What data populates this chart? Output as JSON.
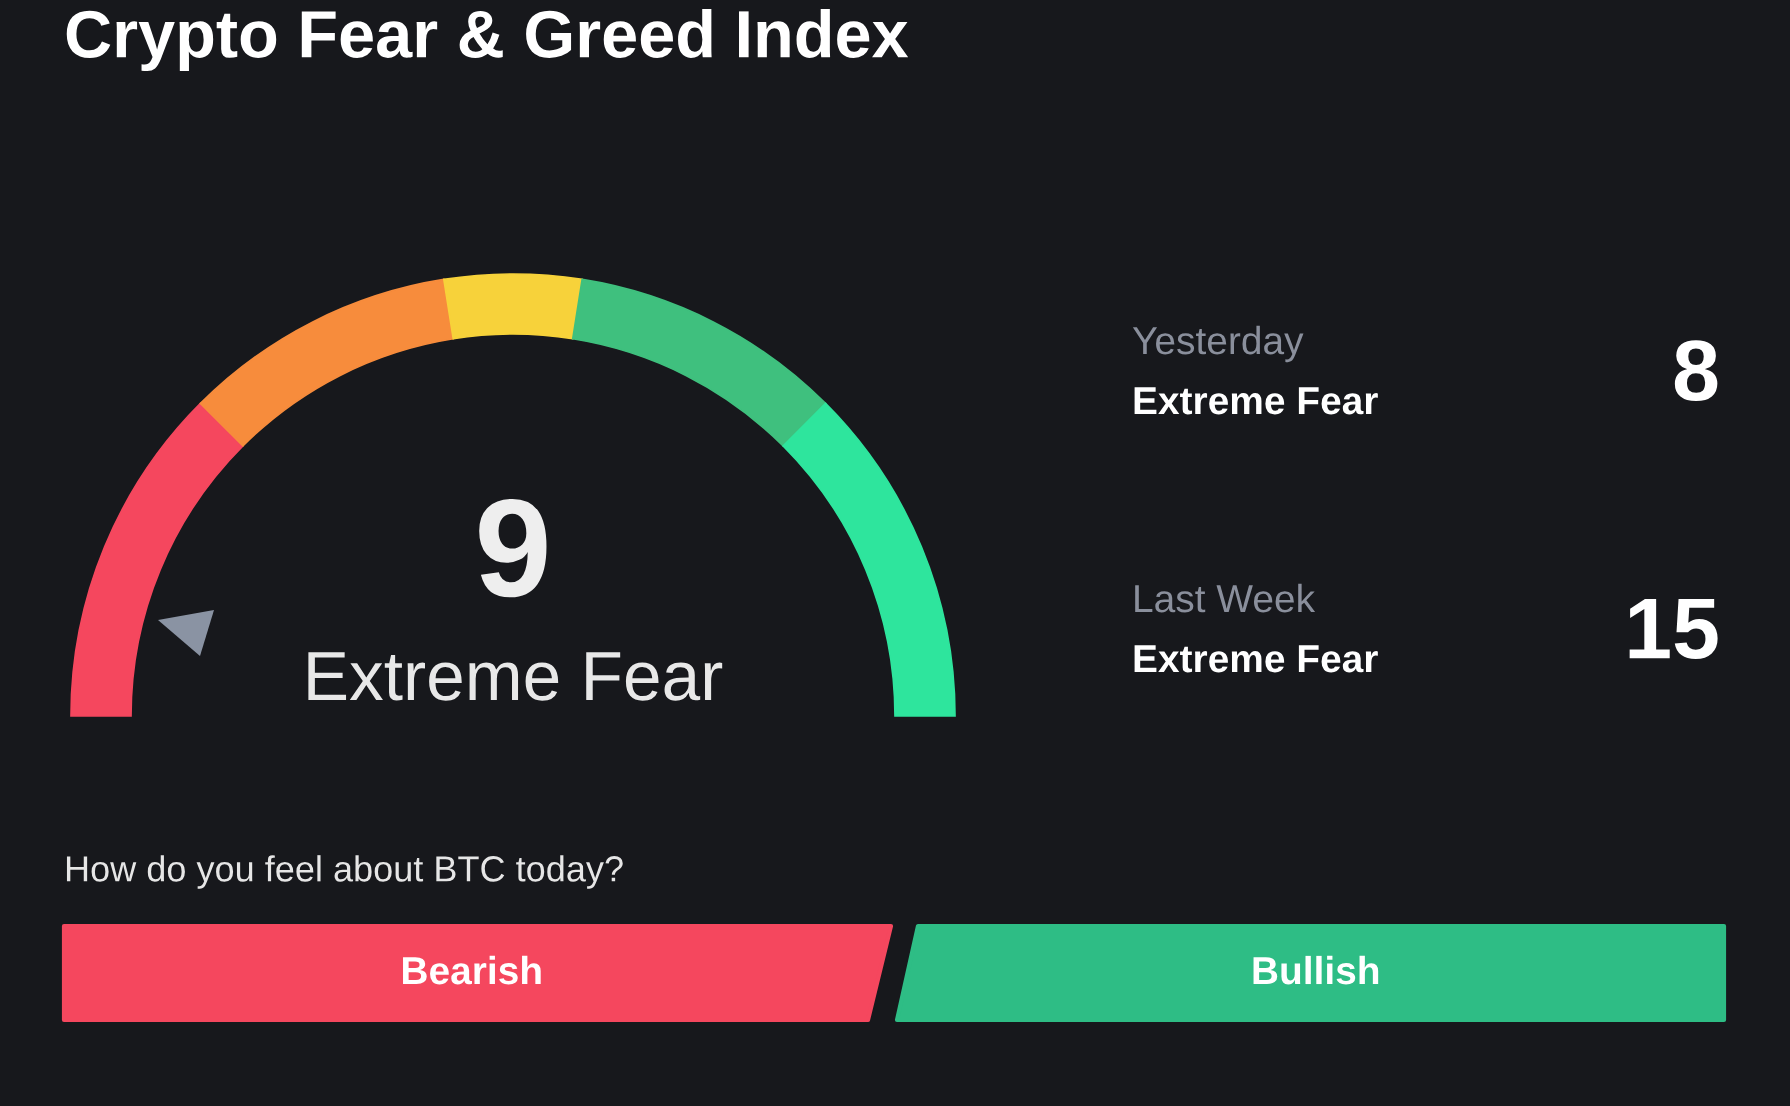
{
  "chart_data": [
    {
      "type": "donut",
      "title": "Crypto Fear & Greed Index",
      "categories": [
        null,
        null,
        null,
        null,
        null
      ],
      "values": [
        25,
        20,
        10,
        20,
        25
      ],
      "colors": [
        "#f5475e",
        "#f78c3c",
        "#f7d23a",
        "#3fc07e",
        "#2ee59d"
      ],
      "annotations": [
        "9",
        "Extreme Fear"
      ]
    },
    {
      "type": "other",
      "categories": [
        "Yesterday",
        "Last Week"
      ],
      "values": [
        8,
        15
      ],
      "data_labels": true,
      "annotations": [
        "Extreme Fear",
        "Extreme Fear"
      ]
    },
    {
      "type": "other",
      "title": "How do you feel about BTC today?",
      "categories": [
        "Bearish",
        "Bullish"
      ],
      "colors": [
        "#f5475e",
        "#2ebd85"
      ]
    }
  ]
}
